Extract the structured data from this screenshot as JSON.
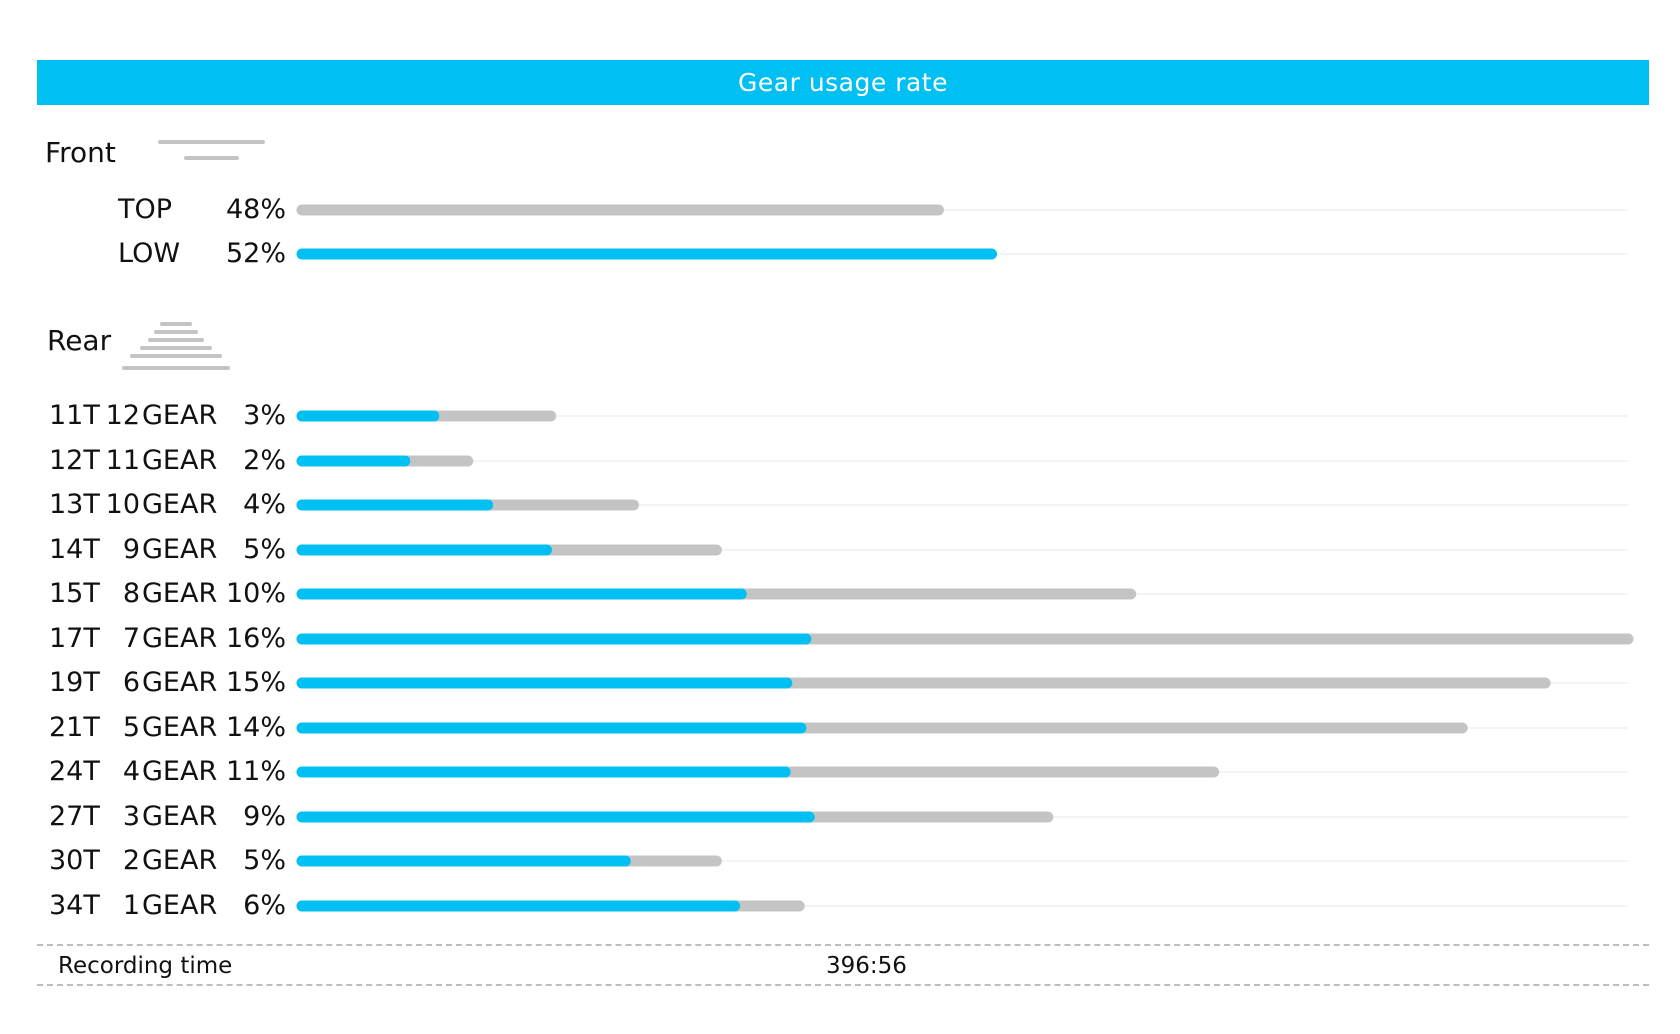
{
  "header": {
    "title": "Gear usage rate"
  },
  "colors": {
    "accent": "#00BFF3",
    "track": "#C4C4C4",
    "text": "#111111"
  },
  "chart_data": {
    "type": "bar",
    "title": "Gear usage rate",
    "front": {
      "title": "Front",
      "icon": "front-chainring-icon",
      "categories": [
        "TOP",
        "LOW"
      ],
      "percent_labels": [
        "48%",
        "52%"
      ],
      "values": [
        48,
        52
      ],
      "scale_max": 100,
      "highlight": "LOW"
    },
    "rear": {
      "title": "Rear",
      "icon": "rear-cassette-icon",
      "teeth": [
        "11T",
        "12T",
        "13T",
        "14T",
        "15T",
        "17T",
        "19T",
        "21T",
        "24T",
        "27T",
        "30T",
        "34T"
      ],
      "gear_numbers": [
        "12",
        "11",
        "10",
        "9",
        "8",
        "7",
        "6",
        "5",
        "4",
        "3",
        "2",
        "1"
      ],
      "gear_word": "GEAR",
      "percent_labels": [
        "3%",
        "2%",
        "4%",
        "5%",
        "10%",
        "16%",
        "15%",
        "14%",
        "11%",
        "9%",
        "5%",
        "6%"
      ],
      "values": [
        3,
        2,
        4,
        5,
        10,
        16,
        15,
        14,
        11,
        9,
        5,
        6
      ],
      "scale_max": 16,
      "highlight_fraction": [
        0.53,
        0.62,
        0.56,
        0.59,
        0.53,
        0.38,
        0.39,
        0.43,
        0.53,
        0.68,
        0.78,
        0.87
      ]
    }
  },
  "footer": {
    "label": "Recording time",
    "value": "396:56"
  }
}
